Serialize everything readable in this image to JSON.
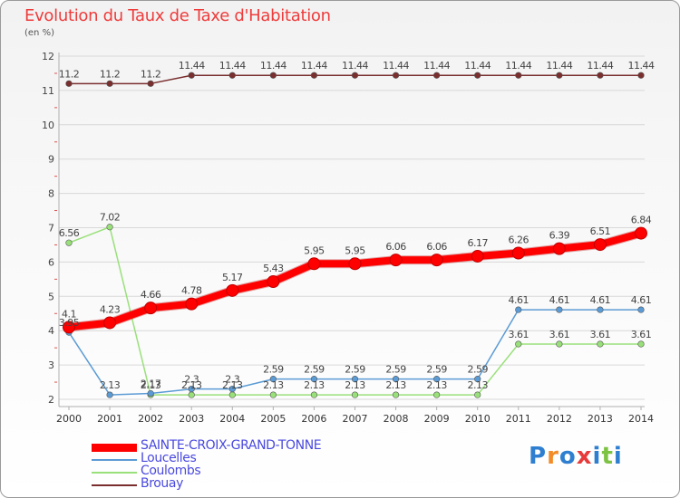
{
  "title": "Evolution du Taux de Taxe d'Habitation",
  "subtitle": "(en %)",
  "logo_text": "Proxiti",
  "colors": {
    "title": "#ef3b3b",
    "grid": "#d8d8d8",
    "axis": "#b0b0b0",
    "legend_text": "#4a4adf"
  },
  "chart_data": {
    "type": "line",
    "title": "Evolution du Taux de Taxe d'Habitation",
    "ylabel": "(en %)",
    "xlabel": "",
    "ylim": [
      2,
      12
    ],
    "yticks": [
      2,
      3,
      4,
      5,
      6,
      7,
      8,
      9,
      10,
      11,
      12
    ],
    "categories": [
      "2000",
      "2001",
      "2002",
      "2003",
      "2004",
      "2005",
      "2006",
      "2007",
      "2008",
      "2009",
      "2010",
      "2011",
      "2012",
      "2013",
      "2014"
    ],
    "grid": "horizontal",
    "legend_position": "bottom-left",
    "series": [
      {
        "name": "SAINTE-CROIX-GRAND-TONNE",
        "color": "#ff0000",
        "width": 8,
        "values": [
          4.1,
          4.23,
          4.66,
          4.78,
          5.17,
          5.43,
          5.95,
          5.95,
          6.06,
          6.06,
          6.17,
          6.26,
          6.39,
          6.51,
          6.84
        ],
        "labels": [
          "4.1",
          "4.23",
          "4.66",
          "4.78",
          "5.17",
          "5.43",
          "5.95",
          "5.95",
          "6.06",
          "6.06",
          "6.17",
          "6.26",
          "6.39",
          "6.51",
          "6.84"
        ]
      },
      {
        "name": "Loucelles",
        "color": "#5b9bd5",
        "width": 1.5,
        "values": [
          3.95,
          2.13,
          2.17,
          2.3,
          2.3,
          2.59,
          2.59,
          2.59,
          2.59,
          2.59,
          2.59,
          4.61,
          4.61,
          4.61,
          4.61
        ],
        "labels": [
          "3.95",
          "2.13",
          "2.17",
          "2.3",
          "2.3",
          "2.59",
          "2.59",
          "2.59",
          "2.59",
          "2.59",
          "2.59",
          "4.61",
          "4.61",
          "4.61",
          "4.61"
        ]
      },
      {
        "name": "Coulombs",
        "color": "#99e07a",
        "width": 1.5,
        "values": [
          6.56,
          7.02,
          2.13,
          2.13,
          2.13,
          2.13,
          2.13,
          2.13,
          2.13,
          2.13,
          2.13,
          3.61,
          3.61,
          3.61,
          3.61
        ],
        "labels": [
          "6.56",
          "7.02",
          "2.13",
          "2.13",
          "2.13",
          "2.13",
          "2.13",
          "2.13",
          "2.13",
          "2.13",
          "2.13",
          "3.61",
          "3.61",
          "3.61",
          "3.61"
        ]
      },
      {
        "name": "Brouay",
        "color": "#7a2e2e",
        "width": 1.5,
        "values": [
          11.2,
          11.2,
          11.2,
          11.44,
          11.44,
          11.44,
          11.44,
          11.44,
          11.44,
          11.44,
          11.44,
          11.44,
          11.44,
          11.44,
          11.44
        ],
        "labels": [
          "11.2",
          "11.2",
          "11.2",
          "11.44",
          "11.44",
          "11.44",
          "11.44",
          "11.44",
          "11.44",
          "11.44",
          "11.44",
          "11.44",
          "11.44",
          "11.44",
          "11.44"
        ]
      }
    ]
  }
}
